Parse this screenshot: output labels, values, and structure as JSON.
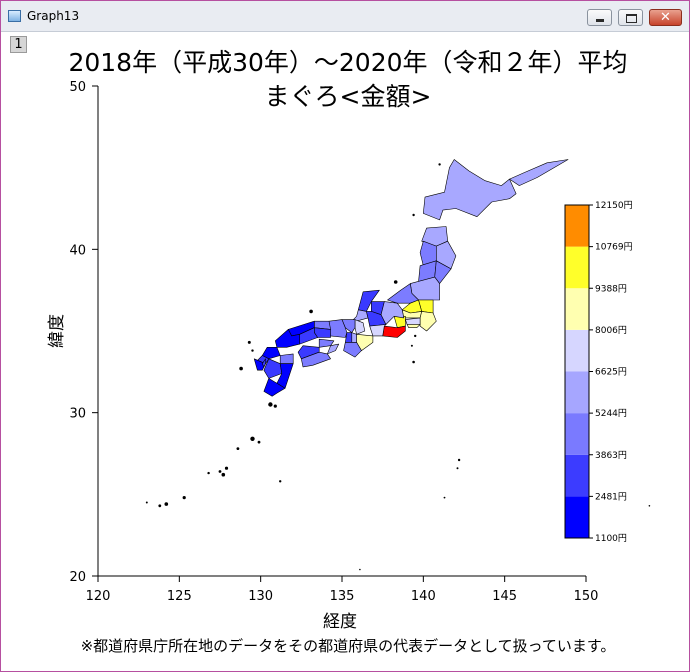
{
  "window": {
    "title": "Graph13",
    "layer_label": "1",
    "controls": {
      "minimize": "",
      "maximize": "",
      "close": "✕"
    }
  },
  "chart_data": {
    "type": "choropleth-map",
    "title_line1": "2018年（平成30年）～2020年（令和２年）平均",
    "title_line2": "まぐろ<金額>",
    "xlabel": "経度",
    "ylabel": "緯度",
    "xlim": [
      120,
      150
    ],
    "ylim": [
      20,
      50
    ],
    "xticks": [
      "120",
      "125",
      "130",
      "135",
      "140",
      "145",
      "150"
    ],
    "yticks": [
      "20",
      "30",
      "40",
      "50"
    ],
    "grid": false,
    "legend_position": "right",
    "colorbar": {
      "min": 1100,
      "max": 12150,
      "labels": [
        "1100円",
        "2481円",
        "3863円",
        "5244円",
        "6625円",
        "8006円",
        "9388円",
        "10769円",
        "12150円"
      ],
      "colors": [
        "#0000ff",
        "#3a3aff",
        "#7878ff",
        "#a0a0ff",
        "#d4d4ff",
        "#ffffb0",
        "#ffff3c",
        "#ffff00",
        "#ff8c00",
        "#ff0000"
      ]
    },
    "note": "※都道府県庁所在地のデータをその都道府県の代表データとして扱っています。"
  }
}
